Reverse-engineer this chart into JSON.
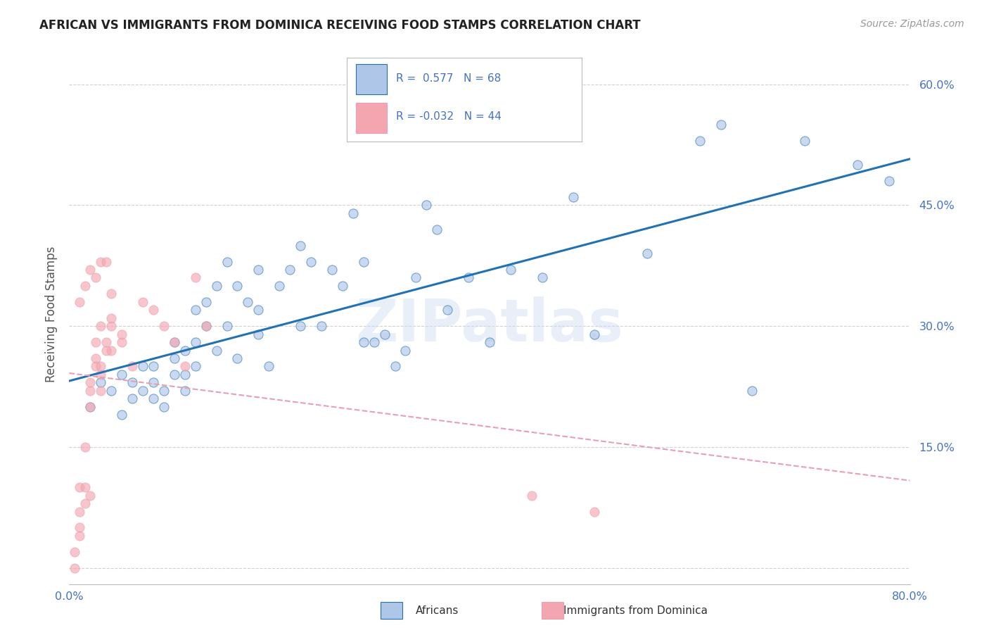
{
  "title": "AFRICAN VS IMMIGRANTS FROM DOMINICA RECEIVING FOOD STAMPS CORRELATION CHART",
  "source": "Source: ZipAtlas.com",
  "ylabel": "Receiving Food Stamps",
  "xlim": [
    0.0,
    0.8
  ],
  "ylim": [
    -0.02,
    0.65
  ],
  "xticks": [
    0.0,
    0.1,
    0.2,
    0.3,
    0.4,
    0.5,
    0.6,
    0.7,
    0.8
  ],
  "xticklabels": [
    "0.0%",
    "",
    "",
    "",
    "",
    "",
    "",
    "",
    "80.0%"
  ],
  "yticks": [
    0.0,
    0.15,
    0.3,
    0.45,
    0.6
  ],
  "yticklabels": [
    "",
    "15.0%",
    "30.0%",
    "45.0%",
    "60.0%"
  ],
  "grid_color": "#cccccc",
  "background_color": "#ffffff",
  "watermark_text": "ZIPatlas",
  "scatter_african_color": "#aec6e8",
  "scatter_dominica_color": "#f4a6b0",
  "trendline_african_color": "#2171b5",
  "trendline_dominica_color": "#e8a0b0",
  "legend_box_color_african": "#aec6e8",
  "legend_box_color_dominica": "#f4a6b0",
  "legend_text_color": "#4472c4",
  "tick_color": "#4472c4",
  "africans_x": [
    0.02,
    0.03,
    0.04,
    0.05,
    0.05,
    0.06,
    0.06,
    0.07,
    0.07,
    0.08,
    0.08,
    0.08,
    0.09,
    0.09,
    0.1,
    0.1,
    0.1,
    0.11,
    0.11,
    0.11,
    0.12,
    0.12,
    0.12,
    0.13,
    0.13,
    0.14,
    0.14,
    0.15,
    0.15,
    0.16,
    0.16,
    0.17,
    0.18,
    0.18,
    0.18,
    0.19,
    0.2,
    0.21,
    0.22,
    0.23,
    0.24,
    0.25,
    0.26,
    0.27,
    0.28,
    0.29,
    0.3,
    0.31,
    0.32,
    0.33,
    0.34,
    0.36,
    0.38,
    0.4,
    0.42,
    0.45,
    0.48,
    0.5,
    0.55,
    0.6,
    0.62,
    0.65,
    0.7,
    0.75,
    0.78,
    0.35,
    0.28,
    0.22
  ],
  "africans_y": [
    0.2,
    0.23,
    0.22,
    0.19,
    0.24,
    0.21,
    0.23,
    0.22,
    0.25,
    0.21,
    0.23,
    0.25,
    0.2,
    0.22,
    0.24,
    0.26,
    0.28,
    0.22,
    0.24,
    0.27,
    0.25,
    0.28,
    0.32,
    0.3,
    0.33,
    0.27,
    0.35,
    0.3,
    0.38,
    0.26,
    0.35,
    0.33,
    0.37,
    0.29,
    0.32,
    0.25,
    0.35,
    0.37,
    0.3,
    0.38,
    0.3,
    0.37,
    0.35,
    0.44,
    0.28,
    0.28,
    0.29,
    0.25,
    0.27,
    0.36,
    0.45,
    0.32,
    0.36,
    0.28,
    0.37,
    0.36,
    0.46,
    0.29,
    0.39,
    0.53,
    0.55,
    0.22,
    0.53,
    0.5,
    0.48,
    0.42,
    0.38,
    0.4
  ],
  "dominica_x": [
    0.005,
    0.01,
    0.01,
    0.01,
    0.015,
    0.015,
    0.02,
    0.02,
    0.02,
    0.025,
    0.025,
    0.03,
    0.03,
    0.03,
    0.035,
    0.04,
    0.04,
    0.05,
    0.06,
    0.07,
    0.08,
    0.09,
    0.1,
    0.11,
    0.12,
    0.13,
    0.02,
    0.025,
    0.03,
    0.035,
    0.04,
    0.05,
    0.01,
    0.015,
    0.02,
    0.025,
    0.03,
    0.035,
    0.04,
    0.005,
    0.01,
    0.015,
    0.44,
    0.5
  ],
  "dominica_y": [
    0.02,
    0.07,
    0.1,
    0.04,
    0.1,
    0.15,
    0.09,
    0.2,
    0.22,
    0.25,
    0.28,
    0.22,
    0.25,
    0.3,
    0.28,
    0.27,
    0.3,
    0.28,
    0.25,
    0.33,
    0.32,
    0.3,
    0.28,
    0.25,
    0.36,
    0.3,
    0.23,
    0.26,
    0.24,
    0.27,
    0.31,
    0.29,
    0.33,
    0.35,
    0.37,
    0.36,
    0.38,
    0.38,
    0.34,
    0.0,
    0.05,
    0.08,
    0.09,
    0.07
  ]
}
